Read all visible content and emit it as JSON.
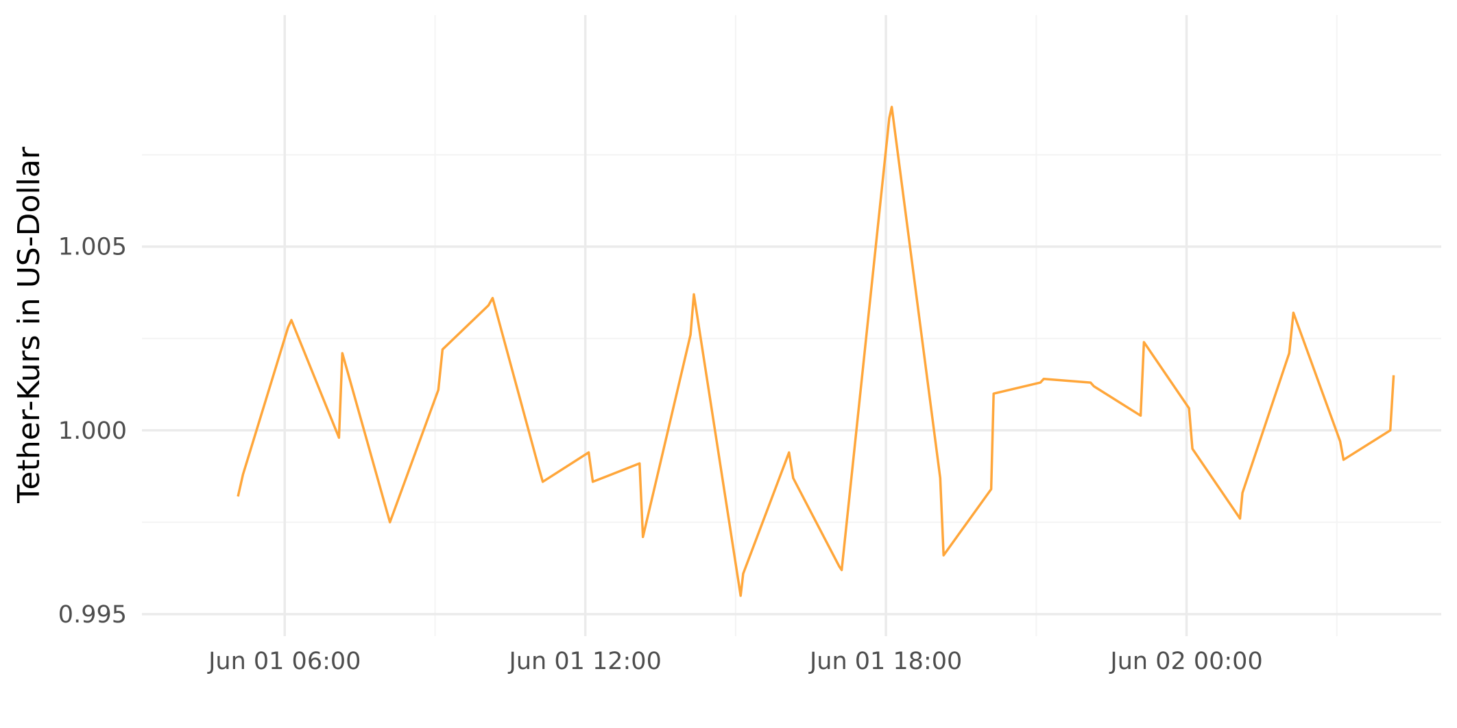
{
  "chart_data": {
    "type": "line",
    "title": "",
    "xlabel": "",
    "ylabel": "Tether-Kurs in US-Dollar",
    "grid": true,
    "legend": "none",
    "colors": {
      "line": "#ffa63a",
      "grid_major": "#ebebeb",
      "grid_minor": "#f4f4f4",
      "background": "#ffffff",
      "tick_text": "#4d4d4d"
    },
    "xlim": [
      "2021-06-01 03:09",
      "2021-06-02 05:05"
    ],
    "ylim": [
      0.9944,
      1.0113
    ],
    "x_ticks": [
      {
        "value": "2021-06-01 06:00",
        "label": "Jun 01 06:00"
      },
      {
        "value": "2021-06-01 12:00",
        "label": "Jun 01 12:00"
      },
      {
        "value": "2021-06-01 18:00",
        "label": "Jun 01 18:00"
      },
      {
        "value": "2021-06-02 00:00",
        "label": "Jun 02 00:00"
      }
    ],
    "x_minor_ticks": [
      "2021-06-01 09:00",
      "2021-06-01 15:00",
      "2021-06-01 21:00",
      "2021-06-02 03:00"
    ],
    "y_ticks": [
      {
        "value": 0.995,
        "label": "0.995"
      },
      {
        "value": 1.0,
        "label": "1.000"
      },
      {
        "value": 1.005,
        "label": "1.005"
      }
    ],
    "y_minor_ticks": [
      0.9975,
      1.0025,
      1.0075
    ],
    "series": [
      {
        "x": [
          "2021-06-01 05:04",
          "2021-06-01 05:10",
          "2021-06-01 06:04",
          "2021-06-01 06:08",
          "2021-06-01 07:05",
          "2021-06-01 07:09",
          "2021-06-01 08:06",
          "2021-06-01 09:04",
          "2021-06-01 09:09",
          "2021-06-01 10:04",
          "2021-06-01 10:09",
          "2021-06-01 11:04",
          "2021-06-01 11:09",
          "2021-06-01 12:04",
          "2021-06-01 12:09",
          "2021-06-01 13:05",
          "2021-06-01 13:09",
          "2021-06-01 14:06",
          "2021-06-01 14:10",
          "2021-06-01 15:06",
          "2021-06-01 15:09",
          "2021-06-01 16:04",
          "2021-06-01 16:09",
          "2021-06-01 17:04",
          "2021-06-01 17:07",
          "2021-06-01 18:04",
          "2021-06-01 18:07",
          "2021-06-01 19:05",
          "2021-06-01 19:09",
          "2021-06-01 20:06",
          "2021-06-01 20:09",
          "2021-06-01 21:05",
          "2021-06-01 21:09",
          "2021-06-01 22:05",
          "2021-06-01 22:09",
          "2021-06-01 23:05",
          "2021-06-01 23:09",
          "2021-06-02 00:03",
          "2021-06-02 00:07",
          "2021-06-02 01:04",
          "2021-06-02 01:07",
          "2021-06-02 02:03",
          "2021-06-02 02:08",
          "2021-06-02 03:04",
          "2021-06-02 03:08",
          "2021-06-02 04:04",
          "2021-06-02 04:08"
        ],
        "y": [
          0.9982,
          0.9988,
          1.0028,
          1.003,
          0.9998,
          1.0021,
          0.9975,
          1.0011,
          1.0022,
          1.0034,
          1.0036,
          0.999,
          0.9986,
          0.9994,
          0.9986,
          0.9991,
          0.9971,
          1.0026,
          1.0037,
          0.9955,
          0.9961,
          0.9994,
          0.9987,
          0.9963,
          0.9962,
          1.0085,
          1.0088,
          0.9987,
          0.9966,
          0.9984,
          1.001,
          1.0013,
          1.0014,
          1.0013,
          1.0012,
          1.0004,
          1.0024,
          1.0006,
          0.9995,
          0.9976,
          0.9983,
          1.0021,
          1.0032,
          0.9997,
          0.9992,
          1.0,
          1.0015
        ]
      }
    ]
  }
}
